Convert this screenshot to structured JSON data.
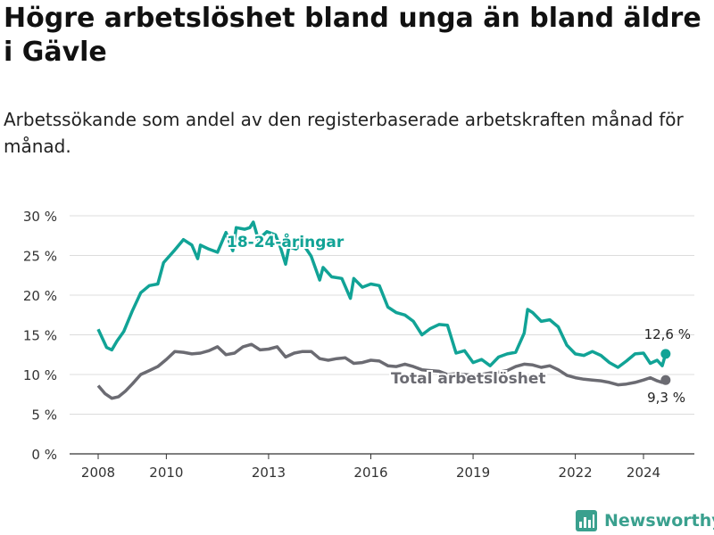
{
  "title": "Högre arbetslöshet bland unga än bland äldre i Gävle",
  "subtitle": "Arbetssökande som andel av den registerbaserade arbetskraften månad för månad.",
  "brand": {
    "name": "Newsworthy",
    "icon": "bar-chart-logo-icon",
    "color": "#3aa08e"
  },
  "chart_data": {
    "type": "line",
    "y_tick_labels": [
      "0 %",
      "5 %",
      "10 %",
      "15 %",
      "20 %",
      "25 %",
      "30 %"
    ],
    "y_ticks": [
      0,
      5,
      10,
      15,
      20,
      25,
      30
    ],
    "x_tick_labels": [
      "2008",
      "2010",
      "2013",
      "2016",
      "2019",
      "2022",
      "2024"
    ],
    "x_ticks": [
      2008,
      2010,
      2013,
      2016,
      2019,
      2022,
      2024
    ],
    "ylim": [
      0,
      30
    ],
    "xlim": [
      2007.6,
      2025.6
    ],
    "grid": true,
    "legend": "labels placed on the lines",
    "series": [
      {
        "name": "18-24-åringar",
        "color": "#11a396",
        "end_label": "12,6 %",
        "points": [
          [
            2008.0,
            15.7
          ],
          [
            2008.25,
            13.4
          ],
          [
            2008.4,
            13.1
          ],
          [
            2008.55,
            14.2
          ],
          [
            2008.75,
            15.4
          ],
          [
            2009.0,
            18.0
          ],
          [
            2009.25,
            20.3
          ],
          [
            2009.5,
            21.2
          ],
          [
            2009.75,
            21.4
          ],
          [
            2009.92,
            24.1
          ],
          [
            2010.25,
            25.7
          ],
          [
            2010.5,
            27.0
          ],
          [
            2010.75,
            26.3
          ],
          [
            2010.92,
            24.6
          ],
          [
            2011.0,
            26.3
          ],
          [
            2011.25,
            25.8
          ],
          [
            2011.5,
            25.4
          ],
          [
            2011.75,
            27.9
          ],
          [
            2011.95,
            25.6
          ],
          [
            2012.05,
            28.5
          ],
          [
            2012.3,
            28.3
          ],
          [
            2012.45,
            28.5
          ],
          [
            2012.55,
            29.2
          ],
          [
            2012.7,
            27.0
          ],
          [
            2012.95,
            28.0
          ],
          [
            2013.2,
            27.6
          ],
          [
            2013.35,
            26.0
          ],
          [
            2013.5,
            23.9
          ],
          [
            2013.6,
            26.1
          ],
          [
            2013.8,
            25.8
          ],
          [
            2014.0,
            26.5
          ],
          [
            2014.25,
            24.9
          ],
          [
            2014.5,
            21.9
          ],
          [
            2014.6,
            23.5
          ],
          [
            2014.85,
            22.3
          ],
          [
            2015.15,
            22.1
          ],
          [
            2015.4,
            19.6
          ],
          [
            2015.5,
            22.1
          ],
          [
            2015.75,
            21.0
          ],
          [
            2016.0,
            21.4
          ],
          [
            2016.25,
            21.2
          ],
          [
            2016.5,
            18.5
          ],
          [
            2016.75,
            17.8
          ],
          [
            2017.0,
            17.5
          ],
          [
            2017.25,
            16.7
          ],
          [
            2017.5,
            15.0
          ],
          [
            2017.75,
            15.8
          ],
          [
            2018.0,
            16.3
          ],
          [
            2018.25,
            16.2
          ],
          [
            2018.5,
            12.7
          ],
          [
            2018.75,
            13.0
          ],
          [
            2019.0,
            11.5
          ],
          [
            2019.25,
            11.9
          ],
          [
            2019.5,
            11.1
          ],
          [
            2019.75,
            12.2
          ],
          [
            2020.0,
            12.6
          ],
          [
            2020.25,
            12.8
          ],
          [
            2020.5,
            15.2
          ],
          [
            2020.6,
            18.2
          ],
          [
            2020.75,
            17.8
          ],
          [
            2021.0,
            16.7
          ],
          [
            2021.25,
            16.9
          ],
          [
            2021.5,
            16.0
          ],
          [
            2021.75,
            13.7
          ],
          [
            2022.0,
            12.6
          ],
          [
            2022.25,
            12.4
          ],
          [
            2022.5,
            12.9
          ],
          [
            2022.75,
            12.4
          ],
          [
            2023.0,
            11.5
          ],
          [
            2023.25,
            10.9
          ],
          [
            2023.5,
            11.7
          ],
          [
            2023.75,
            12.6
          ],
          [
            2024.0,
            12.7
          ],
          [
            2024.2,
            11.4
          ],
          [
            2024.4,
            11.8
          ],
          [
            2024.55,
            11.1
          ],
          [
            2024.65,
            12.6
          ]
        ]
      },
      {
        "name": "Total arbetslöshet",
        "color": "#6b6b72",
        "end_label": "9,3 %",
        "points": [
          [
            2008.0,
            8.6
          ],
          [
            2008.2,
            7.6
          ],
          [
            2008.4,
            7.0
          ],
          [
            2008.6,
            7.2
          ],
          [
            2008.8,
            7.9
          ],
          [
            2009.0,
            8.8
          ],
          [
            2009.25,
            10.0
          ],
          [
            2009.5,
            10.5
          ],
          [
            2009.75,
            11.0
          ],
          [
            2010.0,
            11.9
          ],
          [
            2010.25,
            12.9
          ],
          [
            2010.5,
            12.8
          ],
          [
            2010.75,
            12.6
          ],
          [
            2011.0,
            12.7
          ],
          [
            2011.25,
            13.0
          ],
          [
            2011.5,
            13.5
          ],
          [
            2011.75,
            12.5
          ],
          [
            2012.0,
            12.7
          ],
          [
            2012.25,
            13.5
          ],
          [
            2012.5,
            13.8
          ],
          [
            2012.75,
            13.1
          ],
          [
            2013.0,
            13.2
          ],
          [
            2013.25,
            13.5
          ],
          [
            2013.5,
            12.2
          ],
          [
            2013.75,
            12.7
          ],
          [
            2014.0,
            12.9
          ],
          [
            2014.25,
            12.9
          ],
          [
            2014.5,
            12.0
          ],
          [
            2014.75,
            11.8
          ],
          [
            2015.0,
            12.0
          ],
          [
            2015.25,
            12.1
          ],
          [
            2015.5,
            11.4
          ],
          [
            2015.75,
            11.5
          ],
          [
            2016.0,
            11.8
          ],
          [
            2016.25,
            11.7
          ],
          [
            2016.5,
            11.1
          ],
          [
            2016.75,
            11.0
          ],
          [
            2017.0,
            11.3
          ],
          [
            2017.25,
            11.0
          ],
          [
            2017.5,
            10.6
          ],
          [
            2017.75,
            10.5
          ],
          [
            2018.0,
            10.4
          ],
          [
            2018.25,
            10.0
          ],
          [
            2018.5,
            10.1
          ],
          [
            2018.75,
            10.0
          ],
          [
            2019.0,
            9.9
          ],
          [
            2019.25,
            10.0
          ],
          [
            2019.5,
            10.2
          ],
          [
            2019.75,
            10.3
          ],
          [
            2020.0,
            10.5
          ],
          [
            2020.25,
            11.0
          ],
          [
            2020.5,
            11.3
          ],
          [
            2020.75,
            11.2
          ],
          [
            2021.0,
            10.9
          ],
          [
            2021.25,
            11.1
          ],
          [
            2021.5,
            10.6
          ],
          [
            2021.75,
            9.9
          ],
          [
            2022.0,
            9.6
          ],
          [
            2022.25,
            9.4
          ],
          [
            2022.5,
            9.3
          ],
          [
            2022.75,
            9.2
          ],
          [
            2023.0,
            9.0
          ],
          [
            2023.25,
            8.7
          ],
          [
            2023.5,
            8.8
          ],
          [
            2023.75,
            9.0
          ],
          [
            2024.0,
            9.3
          ],
          [
            2024.2,
            9.6
          ],
          [
            2024.4,
            9.2
          ],
          [
            2024.55,
            9.0
          ],
          [
            2024.65,
            9.3
          ]
        ]
      }
    ]
  }
}
